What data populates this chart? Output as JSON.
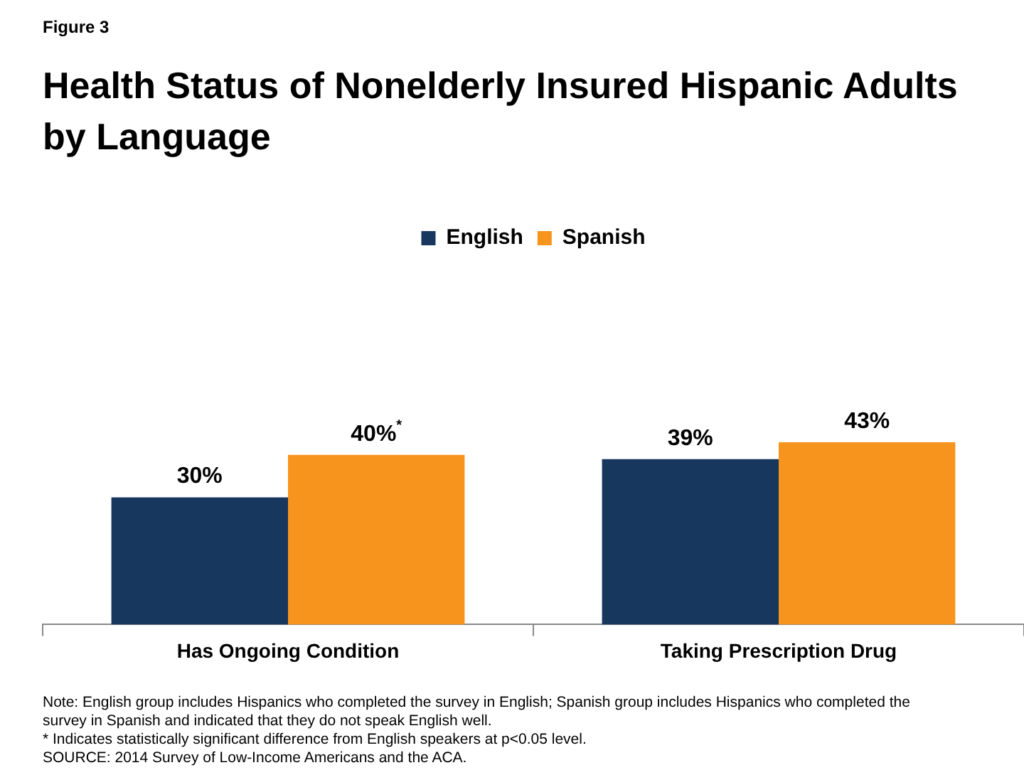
{
  "chart_data": {
    "type": "bar",
    "subtitle": "Figure 3",
    "title": "Health Status of Nonelderly Insured Hispanic Adults by Language",
    "categories": [
      "Has Ongoing Condition",
      "Taking Prescription Drug"
    ],
    "series": [
      {
        "name": "English",
        "color": "#17375e",
        "values": [
          30,
          39
        ],
        "value_labels": [
          "30%",
          "39%"
        ]
      },
      {
        "name": "Spanish",
        "color": "#f7941d",
        "values": [
          40,
          43
        ],
        "value_labels": [
          "40%$^{*}$",
          "43%"
        ]
      }
    ],
    "legend": "top",
    "grid": false,
    "annotations": [
      "Note: English group includes Hispanics who completed the survey in English; Spanish group includes Hispanics who completed the survey in Spanish and indicated that they do not speak English well.",
      "* Indicates statistically significant difference from English speakers at p<0.05 level.",
      "SOURCE: 2014 Survey of Low-Income Americans and the ACA."
    ]
  }
}
